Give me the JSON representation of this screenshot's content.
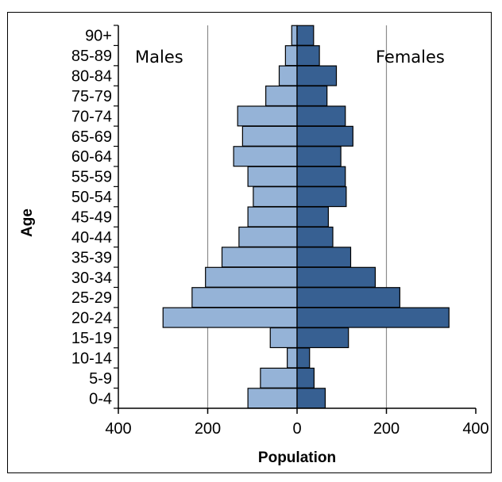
{
  "chart_data": {
    "type": "bar",
    "orientation": "horizontal",
    "title": "",
    "xlabel": "Population",
    "ylabel": "Age",
    "xlim": [
      -400,
      400
    ],
    "xticks": [
      -400,
      -200,
      0,
      200,
      400
    ],
    "xtick_labels": [
      "400",
      "200",
      "0",
      "200",
      "400"
    ],
    "grid": "vertical",
    "categories": [
      "0-4",
      "5-9",
      "10-14",
      "15-19",
      "20-24",
      "25-29",
      "30-34",
      "35-39",
      "40-44",
      "45-49",
      "50-54",
      "55-59",
      "60-64",
      "65-69",
      "70-74",
      "75-79",
      "80-84",
      "85-89",
      "90+"
    ],
    "series": [
      {
        "name": "Males",
        "color": "#95b3d7",
        "values": [
          110,
          82,
          22,
          60,
          300,
          235,
          205,
          168,
          130,
          110,
          98,
          110,
          142,
          122,
          133,
          70,
          40,
          26,
          12
        ]
      },
      {
        "name": "Females",
        "color": "#376092",
        "values": [
          63,
          38,
          28,
          115,
          340,
          230,
          175,
          120,
          80,
          70,
          110,
          108,
          98,
          125,
          108,
          67,
          88,
          50,
          37
        ]
      }
    ],
    "legend": "inside-top"
  }
}
